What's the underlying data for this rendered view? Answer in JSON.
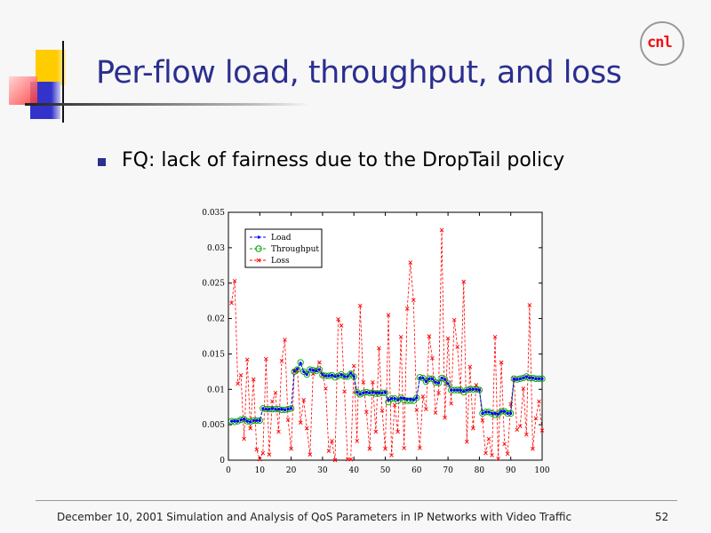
{
  "slide": {
    "title": "Per-flow load, throughput, and loss",
    "bullet": "FQ: lack of fairness due to the DropTail policy",
    "footer": "December 10, 2001 Simulation and Analysis of QoS Parameters in IP Networks with Video Traffic",
    "page_number": "52",
    "logo_text": "cnl"
  },
  "colors": {
    "title": "#2b2f8f",
    "load": "#0000ff",
    "throughput": "#00a000",
    "loss": "#ff0000"
  },
  "chart_data": {
    "type": "line",
    "title": "",
    "xlabel": "",
    "ylabel": "",
    "xlim": [
      0,
      100
    ],
    "ylim": [
      0,
      0.035
    ],
    "xticks": [
      "0",
      "10",
      "20",
      "30",
      "40",
      "50",
      "60",
      "70",
      "80",
      "90",
      "100"
    ],
    "yticks": [
      "0",
      "0.005",
      "0.01",
      "0.015",
      "0.02",
      "0.025",
      "0.03",
      "0.035"
    ],
    "legend_position": "top-left",
    "x_start": 1,
    "series": [
      {
        "name": "Load",
        "values": [
          0.0055,
          0.0055,
          0.0055,
          0.0057,
          0.0058,
          0.0055,
          0.0054,
          0.0056,
          0.0056,
          0.0056,
          0.0073,
          0.0072,
          0.0072,
          0.0073,
          0.0072,
          0.0072,
          0.0072,
          0.0071,
          0.0072,
          0.0073,
          0.0126,
          0.0129,
          0.0137,
          0.0125,
          0.0121,
          0.0128,
          0.0127,
          0.0126,
          0.0128,
          0.0121,
          0.0119,
          0.0119,
          0.012,
          0.0118,
          0.0119,
          0.0121,
          0.0118,
          0.0118,
          0.0123,
          0.0118,
          0.0096,
          0.0093,
          0.0095,
          0.0096,
          0.0095,
          0.0096,
          0.0095,
          0.0095,
          0.0095,
          0.0096,
          0.0085,
          0.0087,
          0.0087,
          0.0085,
          0.0088,
          0.0087,
          0.0086,
          0.0086,
          0.0085,
          0.0088,
          0.0116,
          0.0116,
          0.0111,
          0.0115,
          0.0115,
          0.011,
          0.0109,
          0.0116,
          0.0114,
          0.0108,
          0.0099,
          0.0099,
          0.0099,
          0.0099,
          0.0097,
          0.0099,
          0.01,
          0.01,
          0.01,
          0.0099,
          0.0066,
          0.0068,
          0.0068,
          0.0066,
          0.0066,
          0.0065,
          0.0069,
          0.0069,
          0.0066,
          0.0066,
          0.0115,
          0.0114,
          0.0115,
          0.0116,
          0.0118,
          0.0116,
          0.0116,
          0.0115,
          0.0115,
          0.0115
        ]
      },
      {
        "name": "Throughput",
        "values": [
          0.0055,
          0.0054,
          0.0055,
          0.0057,
          0.0058,
          0.0055,
          0.0054,
          0.0056,
          0.0056,
          0.0056,
          0.0073,
          0.0072,
          0.0072,
          0.0072,
          0.0072,
          0.0072,
          0.0071,
          0.0071,
          0.0072,
          0.0073,
          0.0125,
          0.0128,
          0.0138,
          0.0125,
          0.0121,
          0.0128,
          0.0127,
          0.0126,
          0.0128,
          0.012,
          0.0119,
          0.0119,
          0.012,
          0.0117,
          0.0119,
          0.0121,
          0.0118,
          0.0118,
          0.0122,
          0.0118,
          0.0096,
          0.0093,
          0.0095,
          0.0096,
          0.0095,
          0.0095,
          0.0094,
          0.0094,
          0.0095,
          0.0095,
          0.0082,
          0.0087,
          0.0087,
          0.0084,
          0.0088,
          0.0085,
          0.0084,
          0.0084,
          0.0084,
          0.0088,
          0.0117,
          0.0116,
          0.0111,
          0.0115,
          0.0115,
          0.011,
          0.0109,
          0.0116,
          0.0114,
          0.0108,
          0.0099,
          0.0099,
          0.0099,
          0.0099,
          0.0096,
          0.0099,
          0.01,
          0.01,
          0.01,
          0.0099,
          0.0066,
          0.0068,
          0.0068,
          0.0066,
          0.0064,
          0.0065,
          0.0069,
          0.0069,
          0.0066,
          0.0066,
          0.0115,
          0.0114,
          0.0115,
          0.0116,
          0.0118,
          0.0116,
          0.0116,
          0.0115,
          0.0115,
          0.0115
        ]
      },
      {
        "name": "Loss",
        "values": [
          0.0222,
          0.0253,
          0.0108,
          0.012,
          0.003,
          0.0142,
          0.0045,
          0.0114,
          0.0015,
          0.0001,
          0.001,
          0.0143,
          0.0008,
          0.0083,
          0.0095,
          0.004,
          0.014,
          0.017,
          0.0057,
          0.0016,
          0.0125,
          0.0127,
          0.0053,
          0.0085,
          0.0045,
          0.0008,
          0.0122,
          0.0127,
          0.0138,
          0.012,
          0.0101,
          0.0013,
          0.0027,
          0.0,
          0.0199,
          0.019,
          0.0097,
          0.0001,
          0.0001,
          0.0133,
          0.0027,
          0.0218,
          0.011,
          0.0068,
          0.0016,
          0.011,
          0.004,
          0.0158,
          0.007,
          0.0016,
          0.0205,
          0.0007,
          0.0078,
          0.004,
          0.0174,
          0.0017,
          0.0214,
          0.0279,
          0.0226,
          0.0071,
          0.0017,
          0.009,
          0.0072,
          0.0175,
          0.0144,
          0.0067,
          0.0095,
          0.0325,
          0.006,
          0.0172,
          0.008,
          0.0198,
          0.016,
          0.0097,
          0.0252,
          0.0026,
          0.0132,
          0.0045,
          0.0106,
          0.01,
          0.0056,
          0.001,
          0.003,
          0.0007,
          0.0174,
          0.0002,
          0.0138,
          0.0023,
          0.0009,
          0.0079,
          0.0115,
          0.0043,
          0.0048,
          0.0101,
          0.0036,
          0.0219,
          0.0016,
          0.0059,
          0.0083,
          0.0042
        ]
      }
    ]
  }
}
